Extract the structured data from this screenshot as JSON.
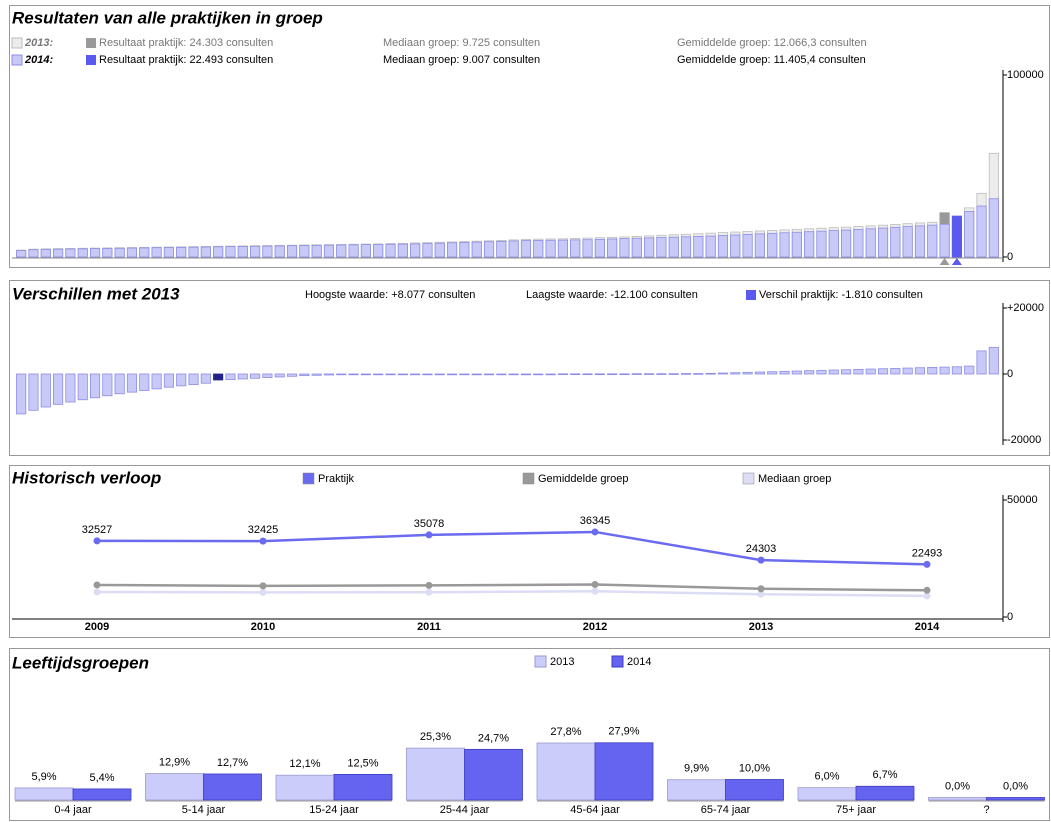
{
  "chart_data": [
    {
      "type": "bar",
      "title": "Resultaten van alle praktijken in groep",
      "ylim": [
        0,
        100000
      ],
      "yticks": [
        0,
        100000
      ],
      "series": [
        {
          "name": "2013:",
          "color": "#ececec",
          "border": "#bdbdbd",
          "highlight": 75,
          "highlight_color": "#999999",
          "info": [
            "Resultaat praktijk: 24.303 consulten",
            "Mediaan groep: 9.725 consulten",
            "Gemiddelde groep: 12.066,3 consulten"
          ],
          "values": [
            3800,
            4300,
            4500,
            4600,
            4700,
            4800,
            4900,
            5000,
            5100,
            5200,
            5300,
            5400,
            5500,
            5600,
            5700,
            5800,
            5900,
            6000,
            6100,
            6200,
            6300,
            6400,
            6500,
            6600,
            6700,
            6800,
            6900,
            7000,
            7100,
            7200,
            7400,
            7500,
            7700,
            7900,
            8100,
            8300,
            8500,
            8700,
            8900,
            9100,
            9400,
            9700,
            9800,
            9900,
            10000,
            10200,
            10400,
            10600,
            10800,
            11000,
            11300,
            11600,
            11900,
            12200,
            12500,
            12800,
            13100,
            13400,
            13700,
            14000,
            14300,
            14600,
            14900,
            15200,
            15500,
            15800,
            16100,
            16400,
            16700,
            17100,
            17500,
            17900,
            18300,
            18700,
            19100,
            24303,
            19600,
            27000,
            35000,
            57000
          ]
        },
        {
          "name": "2014:",
          "color": "#c9c9f7",
          "border": "#8c8ce8",
          "highlight": 76,
          "highlight_color": "#5a5aee",
          "info": [
            "Resultaat praktijk: 22.493 consulten",
            "Mediaan groep: 9.007 consulten",
            "Gemiddelde groep: 11.405,4 consulten"
          ],
          "values": [
            3500,
            4000,
            4200,
            4300,
            4400,
            4500,
            4600,
            4700,
            4800,
            4900,
            5000,
            5100,
            5200,
            5300,
            5400,
            5500,
            5600,
            5700,
            5800,
            5900,
            6000,
            6100,
            6200,
            6300,
            6400,
            6500,
            6600,
            6700,
            6800,
            6900,
            7000,
            7100,
            7200,
            7400,
            7600,
            7800,
            8000,
            8200,
            8400,
            8600,
            8800,
            9000,
            9100,
            9200,
            9300,
            9400,
            9500,
            9700,
            9900,
            10100,
            10300,
            10500,
            10700,
            10900,
            11100,
            11300,
            11500,
            11800,
            12100,
            12400,
            12700,
            13000,
            13300,
            13600,
            13900,
            14200,
            14500,
            14800,
            15100,
            15500,
            15900,
            16300,
            16700,
            17100,
            17500,
            18000,
            22493,
            25000,
            28000,
            32000
          ]
        }
      ]
    },
    {
      "type": "bar",
      "title": "Verschillen met 2013",
      "notes": [
        "Hoogste waarde: +8.077 consulten",
        "Laagste waarde: -12.100 consulten"
      ],
      "ylim": [
        -20000,
        20000
      ],
      "yticks": [
        {
          "value": 20000,
          "label": "+20000"
        },
        0,
        -20000
      ],
      "series": [
        {
          "name": "Verschil praktijk: -1.810 consulten",
          "color": "#c9c9f7",
          "border": "#8c8ce8",
          "highlight": 16,
          "highlight_color": "#22228a",
          "legend_color": "#5a5aee",
          "values": [
            -12100,
            -11000,
            -10000,
            -9200,
            -8500,
            -7800,
            -7200,
            -6600,
            -6000,
            -5500,
            -5000,
            -4500,
            -4000,
            -3600,
            -3200,
            -2800,
            -1810,
            -1700,
            -1500,
            -1300,
            -1100,
            -900,
            -700,
            -500,
            -400,
            -300,
            -200,
            -100,
            -100,
            -100,
            -50,
            -50,
            -50,
            -50,
            -50,
            -50,
            -50,
            -50,
            -50,
            -50,
            -50,
            -50,
            -50,
            -50,
            50,
            50,
            50,
            50,
            50,
            50,
            100,
            100,
            100,
            100,
            150,
            150,
            200,
            300,
            400,
            500,
            600,
            700,
            800,
            900,
            1000,
            1100,
            1200,
            1300,
            1400,
            1500,
            1600,
            1700,
            1800,
            1900,
            2000,
            2100,
            2200,
            2400,
            7000,
            8077
          ]
        }
      ]
    },
    {
      "type": "line",
      "title": "Historisch verloop",
      "categories": [
        "2009",
        "2010",
        "2011",
        "2012",
        "2013",
        "2014"
      ],
      "ylim": [
        0,
        50000
      ],
      "yticks": [
        0,
        50000
      ],
      "series": [
        {
          "name": "Praktijk",
          "color": "#6b6bef",
          "data_labels": true,
          "values": [
            32527,
            32425,
            35078,
            36345,
            24303,
            22493
          ]
        },
        {
          "name": "Gemiddelde groep",
          "color": "#999999",
          "values": [
            13700,
            13300,
            13500,
            13900,
            12066.3,
            11405.4
          ]
        },
        {
          "name": "Mediaan groep",
          "color": "#dcdcf5",
          "values": [
            10700,
            10500,
            10600,
            11000,
            9725,
            9007
          ]
        }
      ]
    },
    {
      "type": "grouped_bar",
      "title": "Leeftijdsgroepen",
      "categories": [
        "0-4 jaar",
        "5-14 jaar",
        "15-24 jaar",
        "25-44 jaar",
        "45-64 jaar",
        "65-74 jaar",
        "75+ jaar",
        "?"
      ],
      "series": [
        {
          "name": "2013",
          "color": "#ccccfa",
          "border": "#9a9ad0",
          "values": [
            5.9,
            12.9,
            12.1,
            25.3,
            27.8,
            9.9,
            6.0,
            0.0
          ],
          "value_labels": [
            "5,9%",
            "12,9%",
            "12,1%",
            "25,3%",
            "27,8%",
            "9,9%",
            "6,0%",
            "0,0%"
          ]
        },
        {
          "name": "2014",
          "color": "#6464f0",
          "border": "#3c3cc0",
          "values": [
            5.4,
            12.7,
            12.5,
            24.7,
            27.9,
            10.0,
            6.7,
            0.0
          ],
          "value_labels": [
            "5,4%",
            "12,7%",
            "12,5%",
            "24,7%",
            "27,9%",
            "10,0%",
            "6,7%",
            "0,0%"
          ]
        }
      ]
    }
  ]
}
